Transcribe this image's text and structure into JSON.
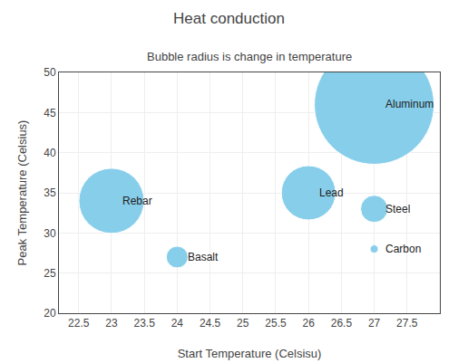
{
  "chart_data": {
    "type": "bubble",
    "title": "Heat conduction",
    "subtitle": "Bubble radius is change in temperature",
    "xlabel": "Start Temperature (Celsisu)",
    "ylabel": "Peak Temperature (Celsius)",
    "labels": [
      "Aluminum",
      "Rebar",
      "Lead",
      "Basalt",
      "Steel",
      "Carbon"
    ],
    "x": [
      27.0,
      23.0,
      26.0,
      24.0,
      27.0,
      27.0
    ],
    "y": [
      46.0,
      34.0,
      35.0,
      27.0,
      33.0,
      28.0
    ],
    "sizes": [
      22,
      12,
      10,
      4,
      5,
      1.5
    ],
    "color": "#87CEEB",
    "xlim": [
      22.2,
      28.0
    ],
    "ylim": [
      20,
      50
    ],
    "xticks": [
      22.5,
      23,
      23.5,
      24,
      24.5,
      25,
      25.5,
      26,
      26.5,
      27,
      27.5
    ],
    "yticks": [
      20,
      25,
      30,
      35,
      40,
      45,
      50
    ],
    "grid": true
  }
}
